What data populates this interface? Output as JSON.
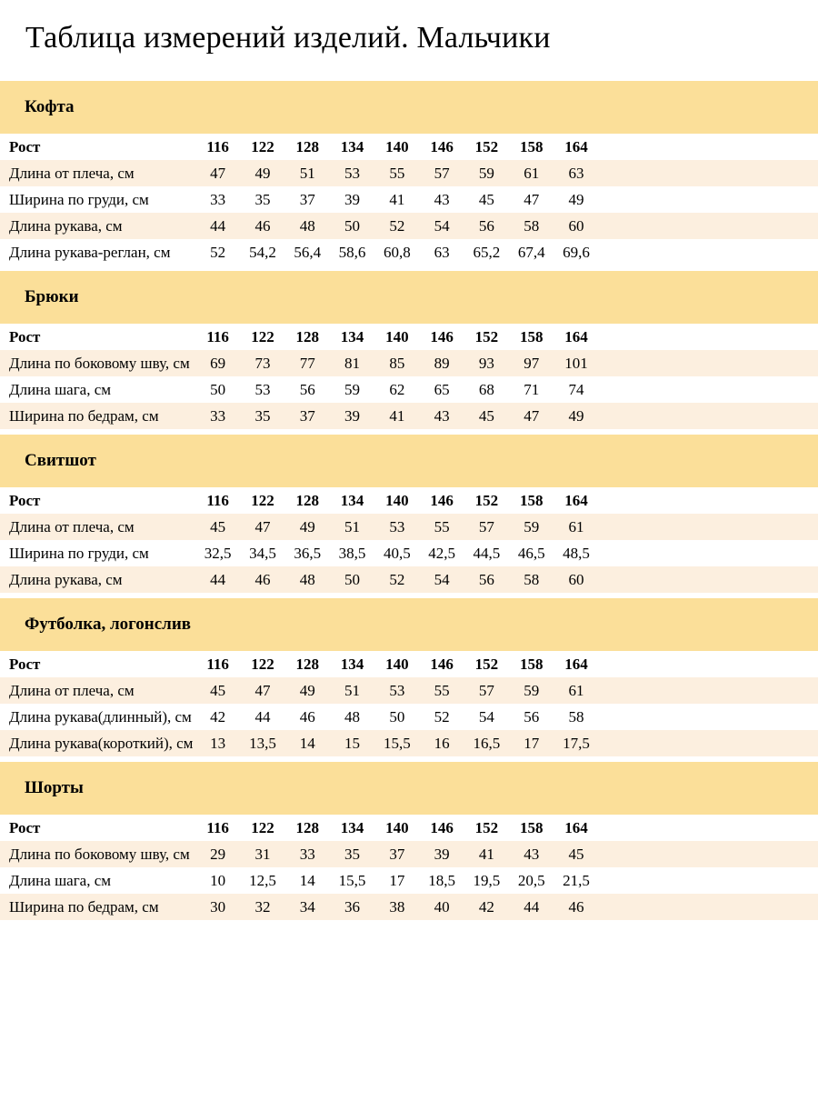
{
  "page": {
    "title": "Таблица измерений изделий. Мальчики"
  },
  "colors": {
    "section_band": "#fbdf99",
    "row_highlight": "#fcefdf",
    "text": "#000000"
  },
  "height_row_label": "Рост",
  "height_columns": [
    "116",
    "122",
    "128",
    "134",
    "140",
    "146",
    "152",
    "158",
    "164"
  ],
  "sections": [
    {
      "label": "Кофта",
      "rows": [
        {
          "label": "Длина от плеча, см",
          "values": [
            "47",
            "49",
            "51",
            "53",
            "55",
            "57",
            "59",
            "61",
            "63"
          ]
        },
        {
          "label": "Ширина по груди, см",
          "values": [
            "33",
            "35",
            "37",
            "39",
            "41",
            "43",
            "45",
            "47",
            "49"
          ]
        },
        {
          "label": "Длина рукава, см",
          "values": [
            "44",
            "46",
            "48",
            "50",
            "52",
            "54",
            "56",
            "58",
            "60"
          ]
        },
        {
          "label": "Длина рукава-реглан, см",
          "values": [
            "52",
            "54,2",
            "56,4",
            "58,6",
            "60,8",
            "63",
            "65,2",
            "67,4",
            "69,6"
          ]
        }
      ]
    },
    {
      "label": "Брюки",
      "rows": [
        {
          "label": "Длина по боковому шву, см",
          "values": [
            "69",
            "73",
            "77",
            "81",
            "85",
            "89",
            "93",
            "97",
            "101"
          ]
        },
        {
          "label": "Длина шага, см",
          "values": [
            "50",
            "53",
            "56",
            "59",
            "62",
            "65",
            "68",
            "71",
            "74"
          ]
        },
        {
          "label": "Ширина по бедрам, см",
          "values": [
            "33",
            "35",
            "37",
            "39",
            "41",
            "43",
            "45",
            "47",
            "49"
          ]
        }
      ]
    },
    {
      "label": "Свитшот",
      "rows": [
        {
          "label": "Длина от плеча, см",
          "values": [
            "45",
            "47",
            "49",
            "51",
            "53",
            "55",
            "57",
            "59",
            "61"
          ]
        },
        {
          "label": "Ширина по груди, см",
          "values": [
            "32,5",
            "34,5",
            "36,5",
            "38,5",
            "40,5",
            "42,5",
            "44,5",
            "46,5",
            "48,5"
          ]
        },
        {
          "label": "Длина рукава, см",
          "values": [
            "44",
            "46",
            "48",
            "50",
            "52",
            "54",
            "56",
            "58",
            "60"
          ]
        }
      ]
    },
    {
      "label": "Футболка, логонслив",
      "rows": [
        {
          "label": "Длина от плеча, см",
          "values": [
            "45",
            "47",
            "49",
            "51",
            "53",
            "55",
            "57",
            "59",
            "61"
          ]
        },
        {
          "label": "Длина рукава(длинный), см",
          "values": [
            "42",
            "44",
            "46",
            "48",
            "50",
            "52",
            "54",
            "56",
            "58"
          ]
        },
        {
          "label": "Длина рукава(короткий), см",
          "values": [
            "13",
            "13,5",
            "14",
            "15",
            "15,5",
            "16",
            "16,5",
            "17",
            "17,5"
          ]
        }
      ]
    },
    {
      "label": "Шорты",
      "rows": [
        {
          "label": "Длина по боковому шву, см",
          "values": [
            "29",
            "31",
            "33",
            "35",
            "37",
            "39",
            "41",
            "43",
            "45"
          ]
        },
        {
          "label": "Длина шага, см",
          "values": [
            "10",
            "12,5",
            "14",
            "15,5",
            "17",
            "18,5",
            "19,5",
            "20,5",
            "21,5"
          ]
        },
        {
          "label": "Ширина по бедрам, см",
          "values": [
            "30",
            "32",
            "34",
            "36",
            "38",
            "40",
            "42",
            "44",
            "46"
          ]
        }
      ]
    }
  ]
}
